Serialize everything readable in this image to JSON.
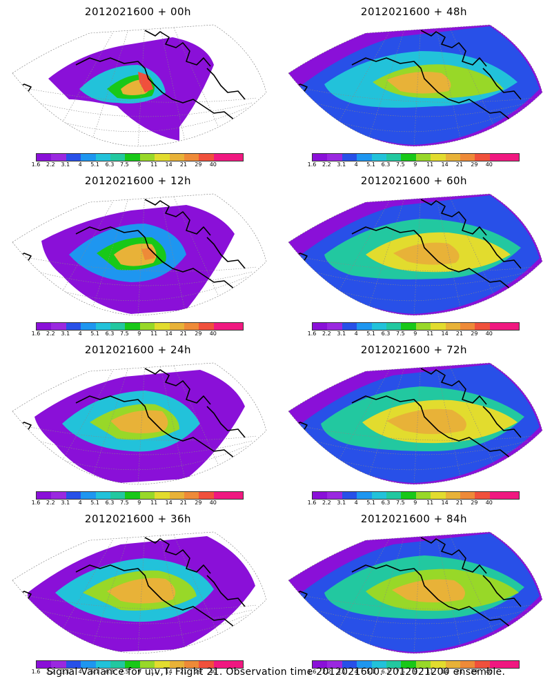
{
  "panels": [
    {
      "title": "2012021600 + 00h"
    },
    {
      "title": "2012021600 + 48h"
    },
    {
      "title": "2012021600 + 12h"
    },
    {
      "title": "2012021600 + 60h"
    },
    {
      "title": "2012021600 + 24h"
    },
    {
      "title": "2012021600 + 72h"
    },
    {
      "title": "2012021600 + 36h"
    },
    {
      "title": "2012021600 + 84h"
    }
  ],
  "colorbar": {
    "ticks": [
      "1.6",
      "2.2",
      "3.1",
      "4",
      "5.1",
      "6.3",
      "7.5",
      "9",
      "11",
      "14",
      "21",
      "29",
      "40"
    ],
    "colors": [
      "#8a10d8",
      "#9a28e0",
      "#2850e8",
      "#1e96f0",
      "#22c2da",
      "#22c8a0",
      "#18c818",
      "#98d828",
      "#e2dc2e",
      "#e8b238",
      "#ee8a38",
      "#f0503c",
      "#f01880",
      "#f01880"
    ]
  },
  "footer": "Signal Variance for u,v,T. Flight 21. Observation time 2012021600. 2012021200 ensemble."
}
